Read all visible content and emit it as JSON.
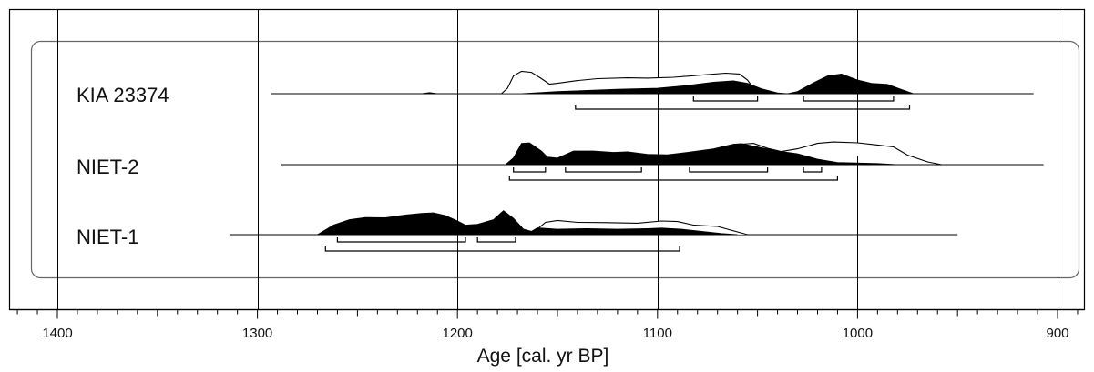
{
  "chart_data": {
    "type": "area",
    "title": "",
    "xlabel": "Age [cal. yr BP]",
    "ylabel": "",
    "xlim": [
      1425,
      882
    ],
    "x_reversed": true,
    "x_ticks": [
      1400,
      1300,
      1200,
      1100,
      1000,
      900
    ],
    "x_tick_labels": [
      "1400",
      "1300",
      "1200",
      "1100",
      "1000",
      "900"
    ],
    "minor_tick_step": 10,
    "grid": true,
    "colors": {
      "posterior": "#000000",
      "prior": "#ffffff",
      "line": "#000000",
      "frame": "#666666"
    },
    "samples": [
      {
        "name": "KIA 23374",
        "baseline_range": [
          1293,
          912
        ],
        "prior_outline": [
          [
            1178,
            0
          ],
          [
            1175,
            0.2
          ],
          [
            1172,
            0.65
          ],
          [
            1168,
            0.82
          ],
          [
            1163,
            0.78
          ],
          [
            1158,
            0.55
          ],
          [
            1154,
            0.35
          ],
          [
            1150,
            0.38
          ],
          [
            1140,
            0.48
          ],
          [
            1130,
            0.55
          ],
          [
            1115,
            0.58
          ],
          [
            1105,
            0.57
          ],
          [
            1092,
            0.6
          ],
          [
            1078,
            0.68
          ],
          [
            1066,
            0.75
          ],
          [
            1059,
            0.72
          ],
          [
            1055,
            0.5
          ],
          [
            1050,
            0
          ]
        ],
        "posterior": [
          [
            1218,
            0
          ],
          [
            1214,
            0.04
          ],
          [
            1210,
            0
          ],
          [
            1168,
            0
          ],
          [
            1150,
            0.08
          ],
          [
            1120,
            0.16
          ],
          [
            1100,
            0.2
          ],
          [
            1085,
            0.3
          ],
          [
            1072,
            0.42
          ],
          [
            1062,
            0.47
          ],
          [
            1055,
            0.38
          ],
          [
            1048,
            0.18
          ],
          [
            1040,
            0.03
          ],
          [
            1035,
            0
          ],
          [
            1030,
            0.08
          ],
          [
            1022,
            0.4
          ],
          [
            1015,
            0.65
          ],
          [
            1008,
            0.72
          ],
          [
            1000,
            0.5
          ],
          [
            993,
            0.38
          ],
          [
            985,
            0.34
          ],
          [
            979,
            0.18
          ],
          [
            972,
            0
          ]
        ],
        "range_68": [
          [
            1082,
            1050
          ],
          [
            1027,
            982
          ]
        ],
        "range_95": [
          [
            1141,
            974
          ]
        ]
      },
      {
        "name": "NIET-2",
        "baseline_range": [
          1288,
          907
        ],
        "prior_outline": [
          [
            1058,
            0.75
          ],
          [
            1052,
            0.78
          ],
          [
            1045,
            0.6
          ],
          [
            1038,
            0.48
          ],
          [
            1030,
            0.58
          ],
          [
            1020,
            0.78
          ],
          [
            1012,
            0.83
          ],
          [
            1000,
            0.8
          ],
          [
            990,
            0.72
          ],
          [
            982,
            0.65
          ],
          [
            975,
            0.35
          ],
          [
            965,
            0.1
          ],
          [
            958,
            0
          ]
        ],
        "posterior": [
          [
            1176,
            0
          ],
          [
            1172,
            0.25
          ],
          [
            1168,
            0.78
          ],
          [
            1164,
            0.8
          ],
          [
            1158,
            0.5
          ],
          [
            1155,
            0.28
          ],
          [
            1150,
            0.24
          ],
          [
            1142,
            0.5
          ],
          [
            1132,
            0.5
          ],
          [
            1122,
            0.45
          ],
          [
            1115,
            0.47
          ],
          [
            1105,
            0.38
          ],
          [
            1095,
            0.36
          ],
          [
            1085,
            0.45
          ],
          [
            1072,
            0.58
          ],
          [
            1062,
            0.75
          ],
          [
            1058,
            0.77
          ],
          [
            1050,
            0.65
          ],
          [
            1040,
            0.5
          ],
          [
            1030,
            0.4
          ],
          [
            1020,
            0.2
          ],
          [
            1010,
            0.08
          ],
          [
            990,
            0.04
          ],
          [
            980,
            0
          ]
        ],
        "range_68": [
          [
            1172,
            1156
          ],
          [
            1146,
            1108
          ],
          [
            1084,
            1045
          ],
          [
            1027,
            1018
          ]
        ],
        "range_95": [
          [
            1174,
            1010
          ]
        ]
      },
      {
        "name": "NIET-1",
        "baseline_range": [
          1314,
          950
        ],
        "prior_outline": [
          [
            1162,
            0.08
          ],
          [
            1156,
            0.45
          ],
          [
            1150,
            0.52
          ],
          [
            1140,
            0.45
          ],
          [
            1125,
            0.44
          ],
          [
            1110,
            0.42
          ],
          [
            1098,
            0.5
          ],
          [
            1090,
            0.48
          ],
          [
            1082,
            0.35
          ],
          [
            1070,
            0.3
          ],
          [
            1060,
            0.1
          ],
          [
            1055,
            0
          ]
        ],
        "posterior": [
          [
            1270,
            0
          ],
          [
            1262,
            0.35
          ],
          [
            1254,
            0.55
          ],
          [
            1246,
            0.63
          ],
          [
            1236,
            0.62
          ],
          [
            1226,
            0.72
          ],
          [
            1218,
            0.78
          ],
          [
            1212,
            0.8
          ],
          [
            1206,
            0.7
          ],
          [
            1200,
            0.5
          ],
          [
            1196,
            0.35
          ],
          [
            1190,
            0.38
          ],
          [
            1182,
            0.55
          ],
          [
            1177,
            0.88
          ],
          [
            1172,
            0.6
          ],
          [
            1167,
            0.2
          ],
          [
            1163,
            0.12
          ],
          [
            1160,
            0.25
          ],
          [
            1150,
            0.2
          ],
          [
            1135,
            0.22
          ],
          [
            1120,
            0.2
          ],
          [
            1105,
            0.22
          ],
          [
            1098,
            0.24
          ],
          [
            1088,
            0.2
          ],
          [
            1078,
            0.12
          ],
          [
            1068,
            0.04
          ],
          [
            1060,
            0
          ]
        ],
        "range_68": [
          [
            1260,
            1196
          ],
          [
            1190,
            1171
          ]
        ],
        "range_95": [
          [
            1266,
            1089
          ]
        ]
      }
    ]
  }
}
